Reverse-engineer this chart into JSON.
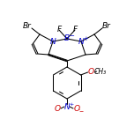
{
  "bg_color": "#ffffff",
  "line_color": "#000000",
  "atom_colors": {
    "N": "#0000cc",
    "B": "#0000cc",
    "Br": "#000000",
    "F": "#000000",
    "O": "#cc0000",
    "C": "#000000"
  },
  "figsize": [
    1.52,
    1.52
  ],
  "dpi": 100
}
